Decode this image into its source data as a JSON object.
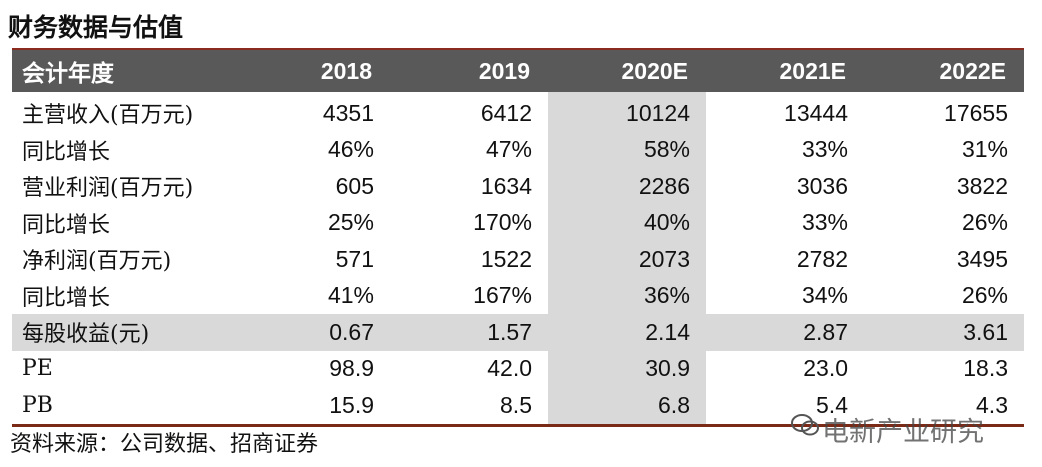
{
  "title": "财务数据与估值",
  "table": {
    "header": [
      "会计年度",
      "2018",
      "2019",
      "2020E",
      "2021E",
      "2022E"
    ],
    "rows": [
      [
        "主营收入(百万元)",
        "4351",
        "6412",
        "10124",
        "13444",
        "17655"
      ],
      [
        "同比增长",
        "46%",
        "47%",
        "58%",
        "33%",
        "31%"
      ],
      [
        "营业利润(百万元)",
        "605",
        "1634",
        "2286",
        "3036",
        "3822"
      ],
      [
        "同比增长",
        "25%",
        "170%",
        "40%",
        "33%",
        "26%"
      ],
      [
        "净利润(百万元)",
        "571",
        "1522",
        "2073",
        "2782",
        "3495"
      ],
      [
        "同比增长",
        "41%",
        "167%",
        "36%",
        "34%",
        "26%"
      ],
      [
        "每股收益(元)",
        "0.67",
        "1.57",
        "2.14",
        "2.87",
        "3.61"
      ],
      [
        "PE",
        "98.9",
        "42.0",
        "30.9",
        "23.0",
        "18.3"
      ],
      [
        "PB",
        "15.9",
        "8.5",
        "6.8",
        "5.4",
        "4.3"
      ]
    ]
  },
  "source": "资料来源：公司数据、招商证券",
  "watermark": "电新产业研究"
}
